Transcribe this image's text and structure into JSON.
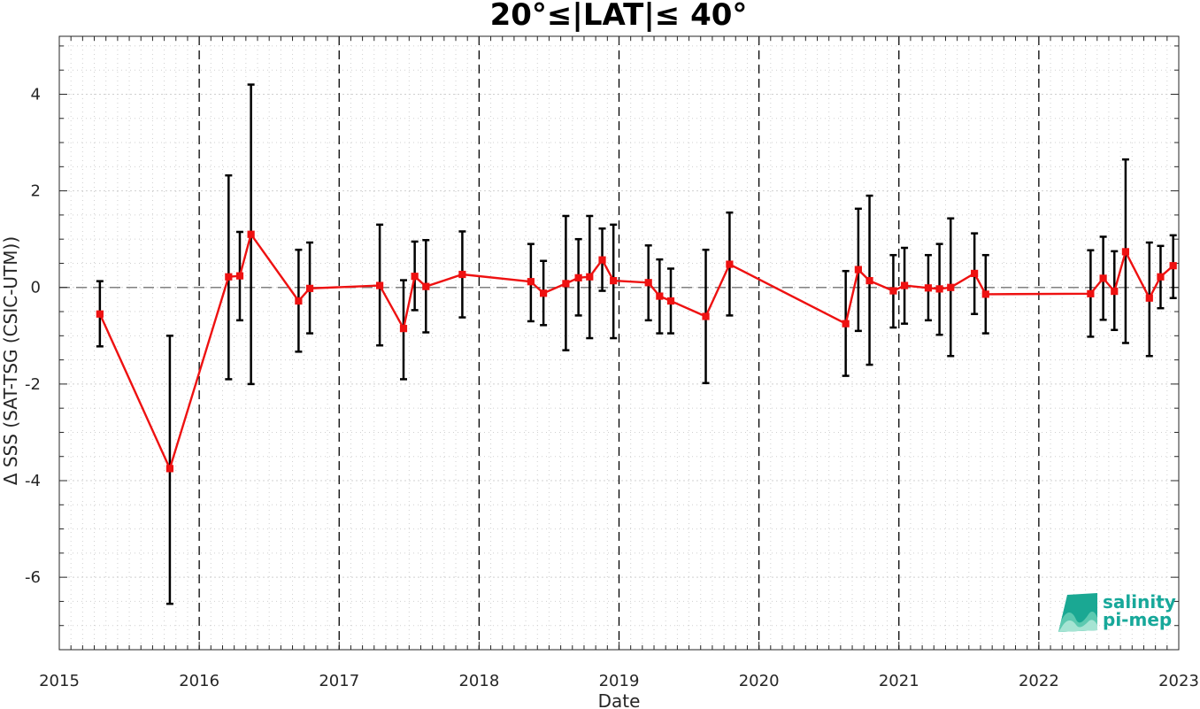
{
  "chart_data": {
    "type": "line",
    "title": "20°≤|LAT|≤ 40°",
    "xlabel": "Date",
    "ylabel": "Δ SSS (SAT-TSG (CSIC-UTM))",
    "xlim": [
      2015,
      2023
    ],
    "ylim": [
      -7.5,
      5.2
    ],
    "x_ticks": [
      "2015",
      "2016",
      "2017",
      "2018",
      "2019",
      "2020",
      "2021",
      "2022",
      "2023"
    ],
    "y_ticks": [
      {
        "v": -6,
        "label": "-6"
      },
      {
        "v": -4,
        "label": "-4"
      },
      {
        "v": -2,
        "label": "-2"
      },
      {
        "v": 0,
        "label": "0"
      },
      {
        "v": 2,
        "label": "2"
      },
      {
        "v": 4,
        "label": "4"
      }
    ],
    "grid": true,
    "zero_line": 0,
    "year_separators": [
      2016,
      2017,
      2018,
      2019,
      2020,
      2021,
      2022
    ],
    "colors": {
      "line": "#ee1111",
      "errorbar": "#000000",
      "zero": "#808080",
      "grid": "#d0d0d0"
    },
    "series": [
      {
        "x": [
          2015.29,
          2015.79,
          2016.21,
          2016.29,
          2016.37,
          2016.71,
          2016.79,
          2017.29,
          2017.46,
          2017.54,
          2017.62,
          2017.88,
          2018.37,
          2018.46,
          2018.62,
          2018.71,
          2018.79,
          2018.88,
          2018.96,
          2019.21,
          2019.29,
          2019.37,
          2019.62,
          2019.79,
          2020.62,
          2020.71,
          2020.79,
          2020.96,
          2021.04,
          2021.21,
          2021.29,
          2021.37,
          2021.54,
          2021.62,
          2022.37,
          2022.46,
          2022.54,
          2022.62,
          2022.79,
          2022.87,
          2022.96
        ],
        "y": [
          -0.55,
          -3.75,
          0.22,
          0.24,
          1.1,
          -0.28,
          -0.02,
          0.04,
          -0.85,
          0.23,
          0.02,
          0.27,
          0.12,
          -0.12,
          0.08,
          0.2,
          0.22,
          0.57,
          0.14,
          0.1,
          -0.18,
          -0.28,
          -0.6,
          0.48,
          -0.75,
          0.37,
          0.14,
          -0.07,
          0.04,
          -0.01,
          -0.03,
          0.0,
          0.29,
          -0.14,
          -0.13,
          0.19,
          -0.08,
          0.74,
          -0.22,
          0.22,
          0.45
        ],
        "err_low": [
          -1.22,
          -6.55,
          -1.9,
          -0.68,
          -2.0,
          -1.33,
          -0.95,
          -1.2,
          -1.9,
          -0.47,
          -0.93,
          -0.62,
          -0.7,
          -0.78,
          -1.3,
          -0.58,
          -1.05,
          -0.07,
          -1.05,
          -0.68,
          -0.95,
          -0.95,
          -1.98,
          -0.58,
          -1.83,
          -0.9,
          -1.6,
          -0.83,
          -0.75,
          -0.68,
          -0.98,
          -1.42,
          -0.55,
          -0.95,
          -1.02,
          -0.67,
          -0.88,
          -1.15,
          -1.42,
          -0.43,
          -0.22
        ],
        "err_high": [
          0.13,
          -1.0,
          2.32,
          1.15,
          4.2,
          0.78,
          0.93,
          1.3,
          0.15,
          0.95,
          0.98,
          1.16,
          0.9,
          0.55,
          1.48,
          1.0,
          1.48,
          1.22,
          1.3,
          0.87,
          0.58,
          0.39,
          0.78,
          1.55,
          0.34,
          1.63,
          1.9,
          0.67,
          0.82,
          0.67,
          0.9,
          1.43,
          1.12,
          0.67,
          0.77,
          1.05,
          0.75,
          2.65,
          0.93,
          0.86,
          1.08
        ]
      }
    ]
  },
  "logo": {
    "line1": "salinity",
    "line2": "pi-mep"
  }
}
